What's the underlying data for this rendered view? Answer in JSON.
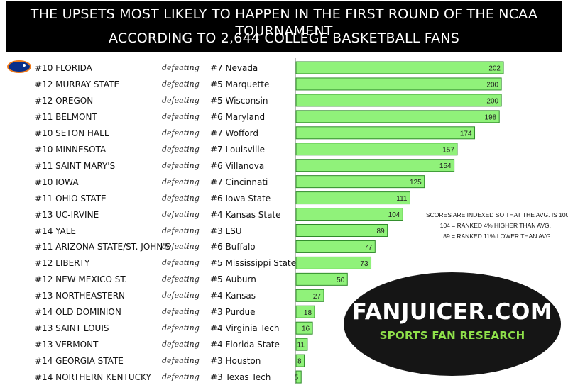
{
  "header": {
    "line1": "THE UPSETS MOST LIKELY TO HAPPEN IN THE FIRST ROUND OF THE NCAA TOURNAMENT",
    "line2": "ACCORDING TO 2,644 COLLEGE BASKETBALL FANS"
  },
  "verb": "defeating",
  "note": {
    "line1": "SCORES ARE INDEXED SO THAT THE AVG. IS 100",
    "line2": "104 = RANKED 4% HIGHER THAN AVG.",
    "line3": "89 = RANKED 11% LOWER THAN AVG."
  },
  "badge": {
    "brand": "FANJUICER.COM",
    "tagline": "SPORTS FAN RESEARCH"
  },
  "colors": {
    "bar_fill": "#90f27a",
    "bar_stroke": "#2f8a2a",
    "header_bg": "#000000",
    "badge_bg": "#151515",
    "tagline": "#8fe04a"
  },
  "chart_data": {
    "type": "bar",
    "orientation": "horizontal",
    "xlim": [
      0,
      202
    ],
    "rows": [
      {
        "underdog": "#10 FLORIDA",
        "favorite": "#7 Nevada",
        "value": 202
      },
      {
        "underdog": "#12 MURRAY STATE",
        "favorite": "#5 Marquette",
        "value": 200
      },
      {
        "underdog": "#12 OREGON",
        "favorite": "#5 Wisconsin",
        "value": 200
      },
      {
        "underdog": "#11 BELMONT",
        "favorite": "#6 Maryland",
        "value": 198
      },
      {
        "underdog": "#10 SETON HALL",
        "favorite": "#7 Wofford",
        "value": 174
      },
      {
        "underdog": "#10 MINNESOTA",
        "favorite": "#7 Louisville",
        "value": 157
      },
      {
        "underdog": "#11 SAINT MARY'S",
        "favorite": "#6 Villanova",
        "value": 154
      },
      {
        "underdog": "#10 IOWA",
        "favorite": "#7 Cincinnati",
        "value": 125
      },
      {
        "underdog": "#11 OHIO STATE",
        "favorite": "#6 Iowa State",
        "value": 111
      },
      {
        "underdog": "#13 UC-IRVINE",
        "favorite": "#4 Kansas State",
        "value": 104
      },
      {
        "underdog": "#14 YALE",
        "favorite": "#3 LSU",
        "value": 89
      },
      {
        "underdog": "#11 ARIZONA STATE/ST. JOHN'S",
        "favorite": "#6 Buffalo",
        "value": 77
      },
      {
        "underdog": "#12 LIBERTY",
        "favorite": "#5 Mississippi State",
        "value": 73
      },
      {
        "underdog": "#12 NEW MEXICO ST.",
        "favorite": "#5 Auburn",
        "value": 50
      },
      {
        "underdog": "#13 NORTHEASTERN",
        "favorite": "#4 Kansas",
        "value": 27
      },
      {
        "underdog": "#14 OLD DOMINION",
        "favorite": "#3 Purdue",
        "value": 18
      },
      {
        "underdog": "#13 SAINT LOUIS",
        "favorite": "#4 Virginia Tech",
        "value": 16
      },
      {
        "underdog": "#13 VERMONT",
        "favorite": "#4 Florida State",
        "value": 11
      },
      {
        "underdog": "#14 GEORGIA STATE",
        "favorite": "#3 Houston",
        "value": 8
      },
      {
        "underdog": "#14 NORTHERN KENTUCKY",
        "favorite": "#3 Texas Tech",
        "value": 5
      }
    ]
  }
}
